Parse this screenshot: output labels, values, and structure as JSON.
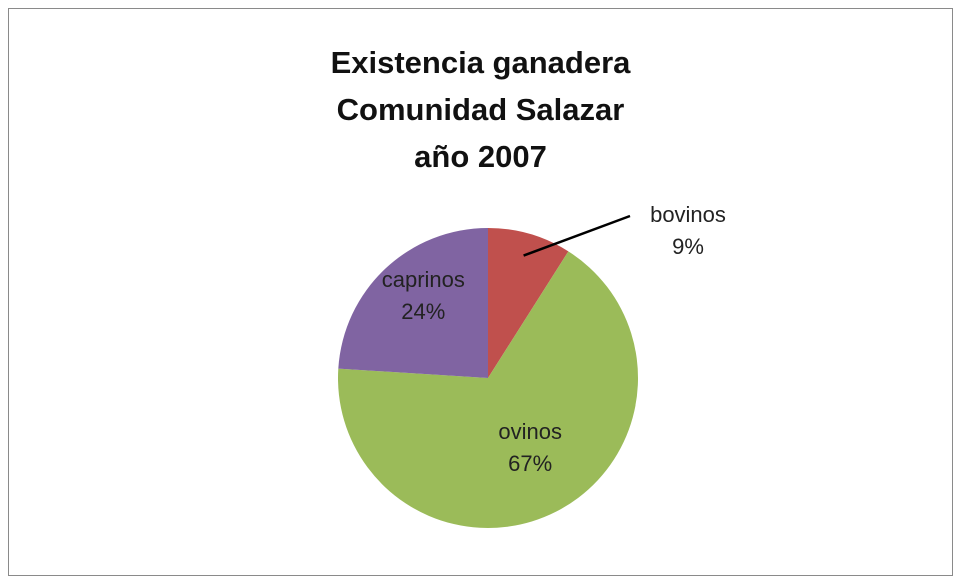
{
  "chart_data": {
    "type": "pie",
    "title_lines": [
      "Existencia ganadera",
      "Comunidad Salazar",
      "año 2007"
    ],
    "slices": [
      {
        "label": "bovinos",
        "value": 9,
        "display": "9%",
        "color": "#c0504d"
      },
      {
        "label": "ovinos",
        "value": 67,
        "display": "67%",
        "color": "#9bbb59"
      },
      {
        "label": "caprinos",
        "value": 24,
        "display": "24%",
        "color": "#8064a2"
      }
    ],
    "legend": "none",
    "labels": "inside (bovinos outside with leader line)"
  }
}
